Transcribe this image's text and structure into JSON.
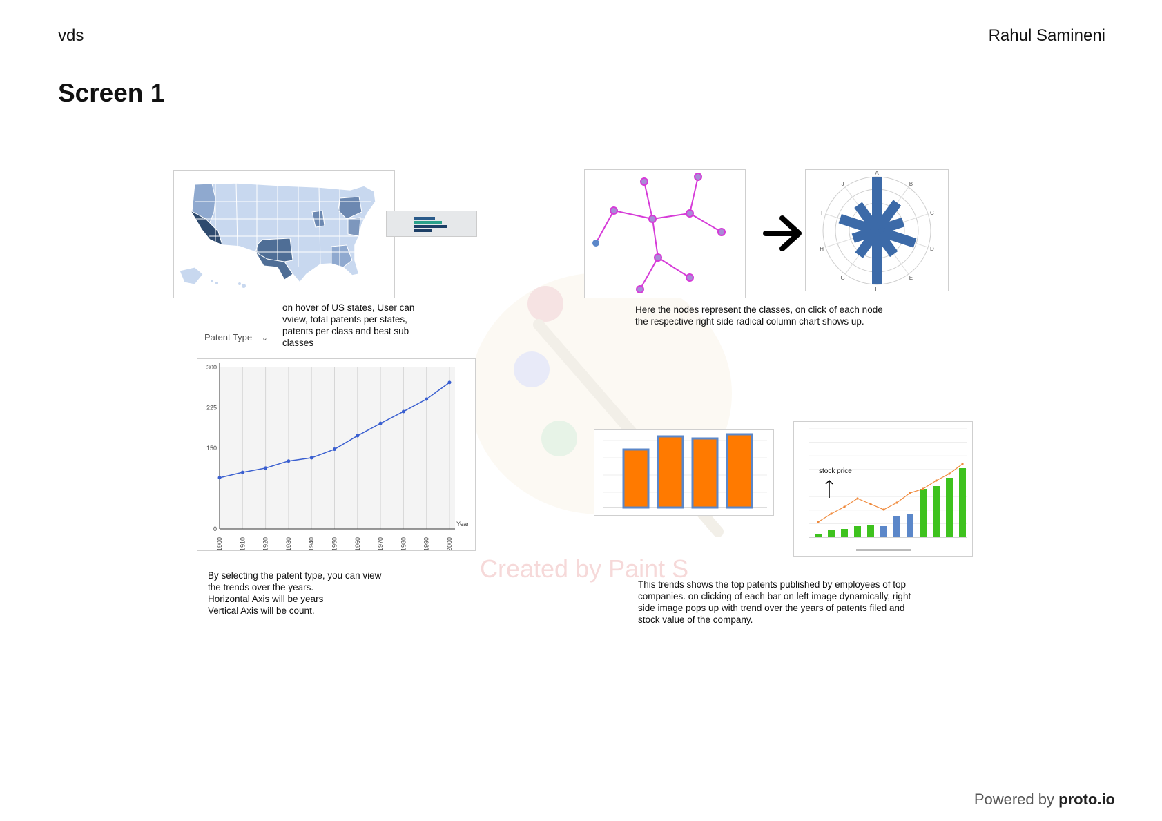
{
  "header": {
    "project": "vds",
    "author": "Rahul Samineni"
  },
  "page_title": "Screen 1",
  "map_panel": {
    "caption": "on hover of US states, User can\nvview, total patents per states,\npatents per class and best sub\nclasses"
  },
  "patent_type": {
    "label": "Patent Type"
  },
  "network_panel": {
    "caption": "Here the nodes represent the classes, on click of each node\nthe respective right side radical column chart shows up.",
    "radial_labels": [
      "A",
      "B",
      "C",
      "D",
      "E",
      "F",
      "G",
      "H",
      "I",
      "J"
    ]
  },
  "trend_panel": {
    "caption": "By selecting the patent type, you can view\nthe trends over the years.\nHorizontal Axis will be years\nVertical Axis will be count."
  },
  "company_panel": {
    "caption": "This trends shows the top patents published by employees of top\ncompanies. on clicking of each bar on left image dynamically, right\nside image pops up with trend over the years of patents filed and\nstock value of the company.",
    "stock_label": "stock price"
  },
  "watermark": "Created by Paint S",
  "footer": {
    "powered_prefix": "Powered by",
    "brand": "proto.io"
  },
  "chart_data": {
    "type": "line",
    "x": [
      1900,
      1910,
      1920,
      1930,
      1940,
      1950,
      1960,
      1970,
      1980,
      1990,
      2000
    ],
    "values": [
      95,
      105,
      113,
      126,
      132,
      148,
      173,
      196,
      218,
      241,
      272
    ],
    "xlabel": "Year",
    "ylim": [
      0,
      300
    ],
    "yticks": [
      "300",
      "225",
      "150",
      "0"
    ],
    "grid": "vertical"
  },
  "colors": {
    "map_dark": "#2e4a6e",
    "map_light": "#c8d8ef",
    "network_edge": "#d63bd8",
    "radial_bar": "#3c6aa8",
    "line": "#3a5fd0",
    "bar_orange": "#ff7a00",
    "bar_border": "#5b87c9",
    "bar_green": "#3ec21e",
    "stock_line": "#f08a3c"
  }
}
